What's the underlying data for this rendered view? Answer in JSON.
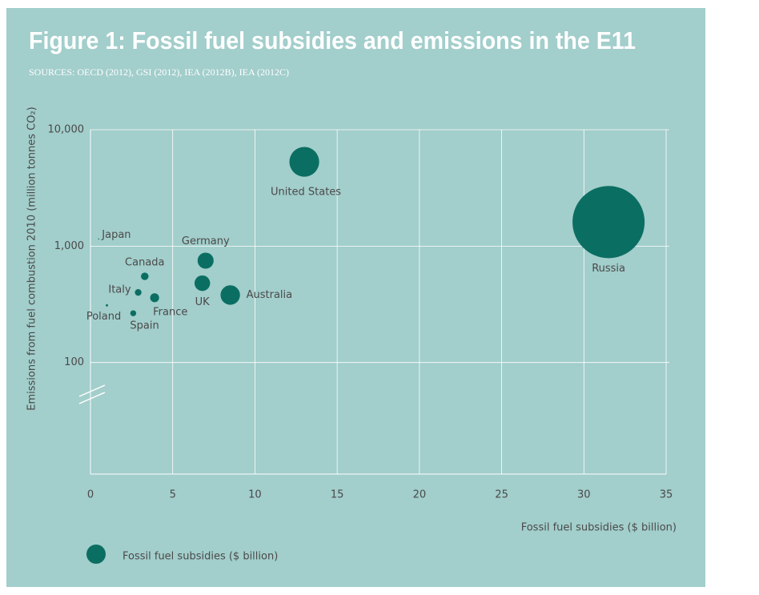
{
  "chart_data": {
    "type": "bubble",
    "title": "Figure 1: Fossil fuel subsidies and emissions in the E11",
    "subtitle": "SOURCES: OECD (2012), GSI (2012), IEA (2012B), IEA (2012C)",
    "x_label": "Fossil fuel subsidies ($ billion)",
    "y_label": "Emissions from fuel combustion 2010 (million tonnes CO₂)",
    "xlim": [
      0,
      35
    ],
    "xticks": [
      0,
      5,
      10,
      15,
      20,
      25,
      30,
      35
    ],
    "ylim": [
      11,
      10000
    ],
    "y_log": true,
    "yticks": [
      {
        "value": 10000,
        "label": "10,000"
      },
      {
        "value": 1000,
        "label": "1,000"
      },
      100
    ],
    "grid": true,
    "series": [
      {
        "name": "Fossil fuel subsidies ($ billion)",
        "color": "#0b6e62",
        "labels": [
          "United States",
          "Russia",
          "Germany",
          "UK",
          "Australia",
          "Canada",
          "Italy",
          "France",
          "Spain",
          "Poland",
          "Japan"
        ],
        "x": [
          13.0,
          31.5,
          7.0,
          6.8,
          8.5,
          3.3,
          2.9,
          3.9,
          2.6,
          1.0,
          0.5
        ],
        "values": [
          5300,
          1610,
          750,
          480,
          380,
          550,
          400,
          360,
          265,
          310,
          1150
        ]
      }
    ]
  }
}
